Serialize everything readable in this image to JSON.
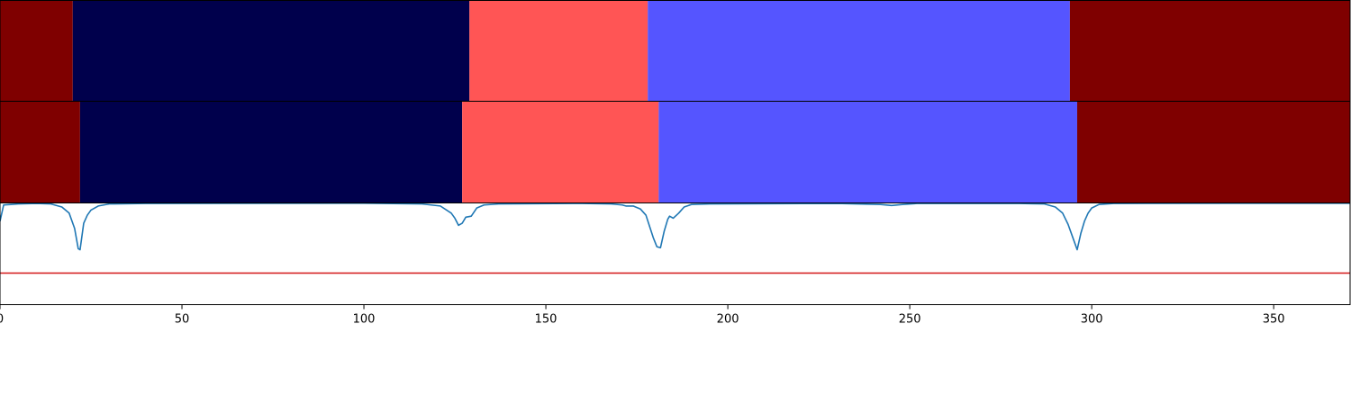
{
  "chart_data": [
    {
      "type": "heatmap",
      "xlim": [
        0,
        371
      ],
      "segments": [
        {
          "start": 0,
          "end": 20,
          "color": "#7f0000"
        },
        {
          "start": 20,
          "end": 129,
          "color": "#00004c"
        },
        {
          "start": 129,
          "end": 178,
          "color": "#ff5555"
        },
        {
          "start": 178,
          "end": 294,
          "color": "#5555ff"
        },
        {
          "start": 294,
          "end": 371,
          "color": "#7f0000"
        }
      ]
    },
    {
      "type": "heatmap",
      "xlim": [
        0,
        371
      ],
      "segments": [
        {
          "start": 0,
          "end": 22,
          "color": "#7f0000"
        },
        {
          "start": 22,
          "end": 127,
          "color": "#00004c"
        },
        {
          "start": 127,
          "end": 181,
          "color": "#ff5555"
        },
        {
          "start": 181,
          "end": 296,
          "color": "#5555ff"
        },
        {
          "start": 296,
          "end": 371,
          "color": "#7f0000"
        }
      ]
    },
    {
      "type": "line",
      "xlim": [
        0,
        371
      ],
      "ylim": [
        0,
        1
      ],
      "xticks": [
        0,
        50,
        100,
        150,
        200,
        250,
        300,
        350
      ],
      "series": [
        {
          "color": "#1f77b4",
          "points": [
            [
              0,
              0.82
            ],
            [
              1,
              0.98
            ],
            [
              3,
              0.985
            ],
            [
              5,
              0.99
            ],
            [
              10,
              0.995
            ],
            [
              14,
              0.99
            ],
            [
              17,
              0.96
            ],
            [
              19,
              0.9
            ],
            [
              20.5,
              0.75
            ],
            [
              21.5,
              0.55
            ],
            [
              22,
              0.54
            ],
            [
              23,
              0.8
            ],
            [
              24,
              0.88
            ],
            [
              25,
              0.93
            ],
            [
              27,
              0.97
            ],
            [
              30,
              0.99
            ],
            [
              40,
              0.995
            ],
            [
              100,
              0.997
            ],
            [
              116,
              0.99
            ],
            [
              121,
              0.97
            ],
            [
              124,
              0.9
            ],
            [
              125,
              0.85
            ],
            [
              126,
              0.78
            ],
            [
              127,
              0.8
            ],
            [
              128,
              0.86
            ],
            [
              129.5,
              0.87
            ],
            [
              131,
              0.95
            ],
            [
              133,
              0.98
            ],
            [
              137,
              0.99
            ],
            [
              160,
              0.995
            ],
            [
              168,
              0.99
            ],
            [
              171,
              0.98
            ],
            [
              172,
              0.97
            ],
            [
              174,
              0.97
            ],
            [
              176,
              0.94
            ],
            [
              177.5,
              0.88
            ],
            [
              178.5,
              0.77
            ],
            [
              179.5,
              0.66
            ],
            [
              180.5,
              0.57
            ],
            [
              181.5,
              0.56
            ],
            [
              182.5,
              0.72
            ],
            [
              183.5,
              0.84
            ],
            [
              184,
              0.87
            ],
            [
              185,
              0.85
            ],
            [
              186.5,
              0.9
            ],
            [
              188,
              0.96
            ],
            [
              190,
              0.985
            ],
            [
              195,
              0.99
            ],
            [
              230,
              0.995
            ],
            [
              242,
              0.985
            ],
            [
              245,
              0.975
            ],
            [
              248,
              0.985
            ],
            [
              252,
              0.995
            ],
            [
              280,
              0.995
            ],
            [
              287,
              0.99
            ],
            [
              290,
              0.96
            ],
            [
              292,
              0.9
            ],
            [
              293.5,
              0.79
            ],
            [
              295,
              0.64
            ],
            [
              296,
              0.54
            ],
            [
              297,
              0.7
            ],
            [
              298,
              0.82
            ],
            [
              299,
              0.9
            ],
            [
              300,
              0.95
            ],
            [
              302,
              0.985
            ],
            [
              306,
              0.995
            ],
            [
              340,
              0.997
            ],
            [
              371,
              0.997
            ]
          ]
        },
        {
          "color": "#d62728",
          "points": [
            [
              0,
              0.31
            ],
            [
              371,
              0.31
            ]
          ]
        }
      ]
    }
  ]
}
